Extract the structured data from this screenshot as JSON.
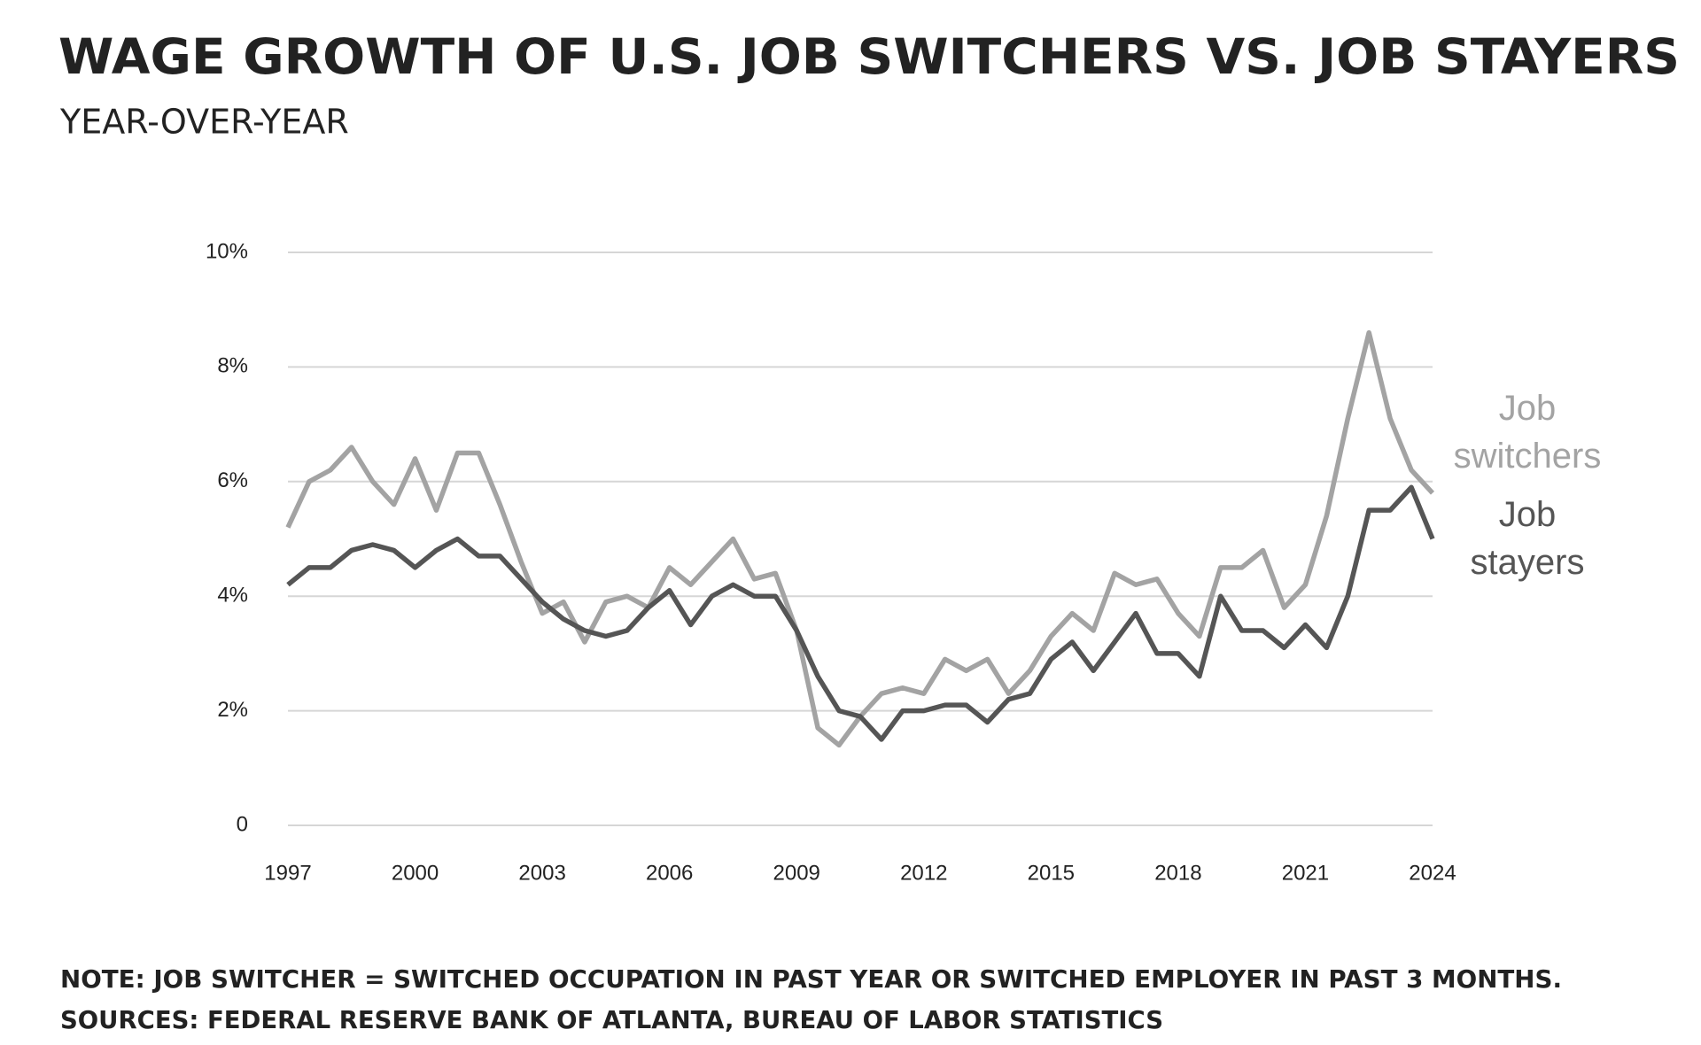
{
  "chart_data": {
    "type": "line",
    "title": "WAGE GROWTH OF U.S. JOB SWITCHERS VS. JOB STAYERS",
    "subtitle": "YEAR-OVER-YEAR",
    "notes": [
      "NOTE: JOB SWITCHER = SWITCHED OCCUPATION IN PAST YEAR OR SWITCHED EMPLOYER IN PAST 3 MONTHS.",
      "SOURCES: FEDERAL RESERVE BANK OF ATLANTA, BUREAU OF LABOR STATISTICS"
    ],
    "x": [
      1997,
      1997.5,
      1998,
      1998.5,
      1999,
      1999.5,
      2000,
      2000.5,
      2001,
      2001.5,
      2002,
      2002.5,
      2003,
      2003.5,
      2004,
      2004.5,
      2005,
      2005.5,
      2006,
      2006.5,
      2007,
      2007.5,
      2008,
      2008.5,
      2009,
      2009.5,
      2010,
      2010.5,
      2011,
      2011.5,
      2012,
      2012.5,
      2013,
      2013.5,
      2014,
      2014.5,
      2015,
      2015.5,
      2016,
      2016.5,
      2017,
      2017.5,
      2018,
      2018.5,
      2019,
      2019.5,
      2020,
      2020.5,
      2021,
      2021.5,
      2022,
      2022.5,
      2023,
      2023.5,
      2024
    ],
    "series": [
      {
        "name": "Job switchers",
        "color": "#a3a3a3",
        "values": [
          5.2,
          6.0,
          6.2,
          6.6,
          6.0,
          5.6,
          6.4,
          5.5,
          6.5,
          6.5,
          5.6,
          4.6,
          3.7,
          3.9,
          3.2,
          3.9,
          4.0,
          3.8,
          4.5,
          4.2,
          4.6,
          5.0,
          4.3,
          4.4,
          3.4,
          1.7,
          1.4,
          1.9,
          2.3,
          2.4,
          2.3,
          2.9,
          2.7,
          2.9,
          2.3,
          2.7,
          3.3,
          3.7,
          3.4,
          4.4,
          4.2,
          4.3,
          3.7,
          3.3,
          4.5,
          4.5,
          4.8,
          3.8,
          4.2,
          5.4,
          7.1,
          8.6,
          7.1,
          6.2,
          5.8
        ]
      },
      {
        "name": "Job stayers",
        "color": "#555555",
        "values": [
          4.2,
          4.5,
          4.5,
          4.8,
          4.9,
          4.8,
          4.5,
          4.8,
          5.0,
          4.7,
          4.7,
          4.3,
          3.9,
          3.6,
          3.4,
          3.3,
          3.4,
          3.8,
          4.1,
          3.5,
          4.0,
          4.2,
          4.0,
          4.0,
          3.4,
          2.6,
          2.0,
          1.9,
          1.5,
          2.0,
          2.0,
          2.1,
          2.1,
          1.8,
          2.2,
          2.3,
          2.9,
          3.2,
          2.7,
          3.2,
          3.7,
          3.0,
          3.0,
          2.6,
          4.0,
          3.4,
          3.4,
          3.1,
          3.5,
          3.1,
          4.0,
          5.5,
          5.5,
          5.9,
          5.0
        ]
      }
    ],
    "xlim": [
      1997,
      2024
    ],
    "xticks": [
      1997,
      2000,
      2003,
      2006,
      2009,
      2012,
      2015,
      2018,
      2021,
      2024
    ],
    "ylim": [
      0,
      10
    ],
    "yticks": [
      0,
      {
        "value": 2,
        "label": "2%"
      },
      {
        "value": 4,
        "label": "4%"
      },
      {
        "value": 6,
        "label": "6%"
      },
      {
        "value": 8,
        "label": "8%"
      },
      {
        "value": 10,
        "label": "10%"
      }
    ],
    "grid": true
  }
}
